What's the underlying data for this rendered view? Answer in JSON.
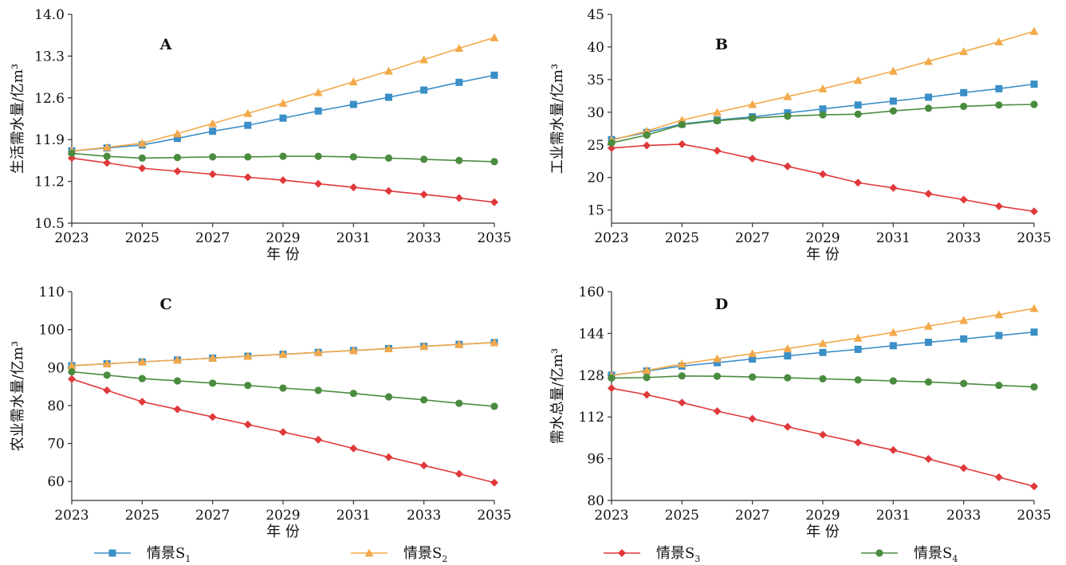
{
  "chart_data": [
    {
      "type": "line",
      "panel_label": "A",
      "ylabel": "生活需水量/亿m³",
      "xlabel": "年 份",
      "x": [
        2023,
        2024,
        2025,
        2026,
        2027,
        2028,
        2029,
        2030,
        2031,
        2032,
        2033,
        2034,
        2035
      ],
      "x_ticks": [
        "2023",
        "2025",
        "2027",
        "2029",
        "2031",
        "2033",
        "2035"
      ],
      "ylim": [
        10.5,
        14.0
      ],
      "y_ticks": [
        "10.5",
        "11.2",
        "11.9",
        "12.6",
        "13.3",
        "14.0"
      ],
      "series": [
        {
          "name": "情景S1",
          "values": [
            11.71,
            11.76,
            11.81,
            11.92,
            12.04,
            12.14,
            12.26,
            12.38,
            12.49,
            12.61,
            12.73,
            12.86,
            12.98
          ]
        },
        {
          "name": "情景S2",
          "values": [
            11.71,
            11.77,
            11.84,
            12.0,
            12.17,
            12.34,
            12.51,
            12.69,
            12.87,
            13.05,
            13.24,
            13.43,
            13.61
          ]
        },
        {
          "name": "情景S3",
          "values": [
            11.59,
            11.51,
            11.42,
            11.37,
            11.32,
            11.27,
            11.22,
            11.16,
            11.1,
            11.04,
            10.98,
            10.92,
            10.85
          ]
        },
        {
          "name": "情景S4",
          "values": [
            11.67,
            11.62,
            11.59,
            11.6,
            11.61,
            11.61,
            11.62,
            11.62,
            11.61,
            11.59,
            11.57,
            11.55,
            11.53
          ]
        }
      ]
    },
    {
      "type": "line",
      "panel_label": "B",
      "ylabel": "工业需水量/亿m³",
      "xlabel": "年 份",
      "x": [
        2023,
        2024,
        2025,
        2026,
        2027,
        2028,
        2029,
        2030,
        2031,
        2032,
        2033,
        2034,
        2035
      ],
      "x_ticks": [
        "2023",
        "2025",
        "2027",
        "2029",
        "2031",
        "2033",
        "2035"
      ],
      "ylim": [
        13,
        45
      ],
      "y_ticks": [
        "15",
        "20",
        "25",
        "30",
        "35",
        "40",
        "45"
      ],
      "series": [
        {
          "name": "情景S1",
          "values": [
            25.8,
            26.9,
            28.2,
            28.8,
            29.3,
            29.9,
            30.5,
            31.1,
            31.7,
            32.3,
            33.0,
            33.6,
            34.3
          ]
        },
        {
          "name": "情景S2",
          "values": [
            25.7,
            27.1,
            28.8,
            30.0,
            31.2,
            32.4,
            33.6,
            34.9,
            36.3,
            37.8,
            39.3,
            40.8,
            42.4
          ]
        },
        {
          "name": "情景S3",
          "values": [
            24.5,
            24.9,
            25.1,
            24.1,
            22.9,
            21.7,
            20.5,
            19.2,
            18.4,
            17.5,
            16.6,
            15.6,
            14.8
          ]
        },
        {
          "name": "情景S4",
          "values": [
            25.3,
            26.5,
            28.1,
            28.7,
            29.1,
            29.4,
            29.6,
            29.7,
            30.2,
            30.6,
            30.9,
            31.1,
            31.2
          ]
        }
      ]
    },
    {
      "type": "line",
      "panel_label": "C",
      "ylabel": "农业需水量/亿m³",
      "xlabel": "年 份",
      "x": [
        2023,
        2024,
        2025,
        2026,
        2027,
        2028,
        2029,
        2030,
        2031,
        2032,
        2033,
        2034,
        2035
      ],
      "x_ticks": [
        "2023",
        "2025",
        "2027",
        "2029",
        "2031",
        "2033",
        "2035"
      ],
      "ylim": [
        55,
        110
      ],
      "y_ticks": [
        "60",
        "70",
        "80",
        "90",
        "100",
        "110"
      ],
      "series": [
        {
          "name": "情景S1",
          "values": [
            90.5,
            91.0,
            91.5,
            92.0,
            92.5,
            93.0,
            93.5,
            94.0,
            94.5,
            95.0,
            95.6,
            96.1,
            96.6
          ]
        },
        {
          "name": "情景S2",
          "values": [
            90.5,
            91.0,
            91.5,
            92.0,
            92.5,
            93.0,
            93.5,
            94.0,
            94.5,
            95.0,
            95.6,
            96.1,
            96.6
          ]
        },
        {
          "name": "情景S3",
          "values": [
            87.0,
            84.0,
            81.0,
            79.0,
            77.0,
            75.0,
            73.0,
            71.0,
            68.7,
            66.4,
            64.2,
            62.0,
            59.7
          ]
        },
        {
          "name": "情景S4",
          "values": [
            88.9,
            88.0,
            87.1,
            86.5,
            85.9,
            85.3,
            84.6,
            84.0,
            83.2,
            82.3,
            81.5,
            80.6,
            79.8
          ]
        }
      ]
    },
    {
      "type": "line",
      "panel_label": "D",
      "ylabel": "需水总量/亿m³",
      "xlabel": "年 份",
      "x": [
        2023,
        2024,
        2025,
        2026,
        2027,
        2028,
        2029,
        2030,
        2031,
        2032,
        2033,
        2034,
        2035
      ],
      "x_ticks": [
        "2023",
        "2025",
        "2027",
        "2029",
        "2031",
        "2033",
        "2035"
      ],
      "ylim": [
        80,
        160
      ],
      "y_ticks": [
        "80",
        "96",
        "112",
        "128",
        "144",
        "160"
      ],
      "series": [
        {
          "name": "情景S1",
          "values": [
            128.0,
            129.6,
            131.5,
            132.8,
            134.2,
            135.4,
            136.7,
            137.9,
            139.3,
            140.6,
            141.9,
            143.2,
            144.5
          ]
        },
        {
          "name": "情景S2",
          "values": [
            127.9,
            129.8,
            132.3,
            134.3,
            136.3,
            138.2,
            140.2,
            142.2,
            144.4,
            146.8,
            149.0,
            151.2,
            153.6
          ]
        },
        {
          "name": "情景S3",
          "values": [
            123.0,
            120.5,
            117.5,
            114.2,
            111.3,
            108.2,
            105.2,
            102.2,
            99.3,
            95.9,
            92.4,
            88.9,
            85.4
          ]
        },
        {
          "name": "情景S4",
          "values": [
            126.9,
            127.1,
            127.7,
            127.6,
            127.3,
            127.0,
            126.6,
            126.2,
            125.8,
            125.4,
            124.8,
            124.1,
            123.5
          ]
        }
      ]
    }
  ],
  "legend": [
    {
      "prefix": "情景S",
      "sub": "1",
      "color": "#3b8fc7",
      "marker": "square"
    },
    {
      "prefix": "情景S",
      "sub": "2",
      "color": "#f3a94a",
      "marker": "triangle"
    },
    {
      "prefix": "情景S",
      "sub": "3",
      "color": "#e0393b",
      "marker": "diamond"
    },
    {
      "prefix": "情景S",
      "sub": "4",
      "color": "#4a8c3f",
      "marker": "circle"
    }
  ],
  "colors": {
    "s1": "#3b8fc7",
    "s2": "#f3a94a",
    "s3": "#e0393b",
    "s4": "#4a8c3f",
    "axis": "#333333"
  }
}
